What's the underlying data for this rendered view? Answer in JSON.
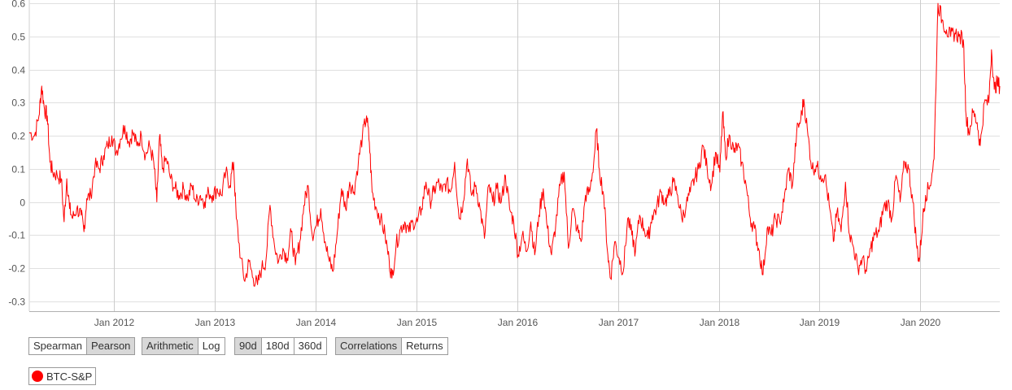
{
  "chart_data": {
    "type": "line",
    "x_ticks": [
      "Jan 2012",
      "Jan 2013",
      "Jan 2014",
      "Jan 2015",
      "Jan 2016",
      "Jan 2017",
      "Jan 2018",
      "Jan 2019",
      "Jan 2020"
    ],
    "y_ticks": [
      "0.6",
      "0.5",
      "0.4",
      "0.3",
      "0.2",
      "0.1",
      "0",
      "-0.1",
      "-0.2",
      "-0.3"
    ],
    "xlim": [
      "2011-03-01",
      "2020-10-15"
    ],
    "ylim": [
      -0.33,
      0.61
    ],
    "grid": true,
    "series": [
      {
        "name": "BTC-S&P",
        "color": "#ff0000",
        "points": [
          [
            "2011-03-01",
            0.21
          ],
          [
            "2011-03-20",
            0.2
          ],
          [
            "2011-04-05",
            0.26
          ],
          [
            "2011-04-15",
            0.35
          ],
          [
            "2011-04-25",
            0.28
          ],
          [
            "2011-05-05",
            0.26
          ],
          [
            "2011-05-15",
            0.12
          ],
          [
            "2011-05-25",
            0.09
          ],
          [
            "2011-06-10",
            0.08
          ],
          [
            "2011-06-25",
            0.07
          ],
          [
            "2011-07-05",
            -0.06
          ],
          [
            "2011-07-15",
            0.07
          ],
          [
            "2011-07-25",
            -0.02
          ],
          [
            "2011-08-05",
            -0.05
          ],
          [
            "2011-08-20",
            -0.02
          ],
          [
            "2011-09-05",
            -0.04
          ],
          [
            "2011-09-15",
            -0.09
          ],
          [
            "2011-09-25",
            0.01
          ],
          [
            "2011-10-10",
            0.02
          ],
          [
            "2011-10-25",
            0.11
          ],
          [
            "2011-11-10",
            0.1
          ],
          [
            "2011-11-25",
            0.14
          ],
          [
            "2011-12-10",
            0.17
          ],
          [
            "2011-12-25",
            0.2
          ],
          [
            "2012-01-10",
            0.15
          ],
          [
            "2012-01-25",
            0.19
          ],
          [
            "2012-02-10",
            0.23
          ],
          [
            "2012-02-25",
            0.18
          ],
          [
            "2012-03-10",
            0.21
          ],
          [
            "2012-03-25",
            0.17
          ],
          [
            "2012-04-10",
            0.2
          ],
          [
            "2012-04-25",
            0.14
          ],
          [
            "2012-05-10",
            0.17
          ],
          [
            "2012-05-25",
            0.12
          ],
          [
            "2012-06-05",
            0.0
          ],
          [
            "2012-06-15",
            0.2
          ],
          [
            "2012-06-25",
            0.1
          ],
          [
            "2012-07-10",
            0.13
          ],
          [
            "2012-07-25",
            0.07
          ],
          [
            "2012-08-10",
            0.04
          ],
          [
            "2012-08-25",
            0.02
          ],
          [
            "2012-09-10",
            0.04
          ],
          [
            "2012-09-25",
            0.01
          ],
          [
            "2012-10-10",
            0.05
          ],
          [
            "2012-10-25",
            0.0
          ],
          [
            "2012-11-10",
            0.02
          ],
          [
            "2012-11-25",
            0.0
          ],
          [
            "2012-12-10",
            0.03
          ],
          [
            "2012-12-25",
            0.02
          ],
          [
            "2013-01-10",
            0.04
          ],
          [
            "2013-01-25",
            0.02
          ],
          [
            "2013-02-10",
            0.09
          ],
          [
            "2013-02-25",
            0.05
          ],
          [
            "2013-03-10",
            0.12
          ],
          [
            "2013-03-20",
            -0.05
          ],
          [
            "2013-04-05",
            -0.17
          ],
          [
            "2013-04-20",
            -0.24
          ],
          [
            "2013-05-05",
            -0.18
          ],
          [
            "2013-05-20",
            -0.23
          ],
          [
            "2013-06-05",
            -0.25
          ],
          [
            "2013-06-20",
            -0.2
          ],
          [
            "2013-07-05",
            -0.18
          ],
          [
            "2013-07-20",
            -0.01
          ],
          [
            "2013-08-05",
            -0.13
          ],
          [
            "2013-08-20",
            -0.18
          ],
          [
            "2013-09-05",
            -0.14
          ],
          [
            "2013-09-20",
            -0.17
          ],
          [
            "2013-10-05",
            -0.09
          ],
          [
            "2013-10-20",
            -0.19
          ],
          [
            "2013-11-05",
            -0.12
          ],
          [
            "2013-11-20",
            -0.01
          ],
          [
            "2013-12-05",
            0.05
          ],
          [
            "2013-12-20",
            -0.1
          ],
          [
            "2014-01-05",
            -0.07
          ],
          [
            "2014-01-20",
            -0.02
          ],
          [
            "2014-02-05",
            -0.12
          ],
          [
            "2014-02-20",
            -0.18
          ],
          [
            "2014-03-05",
            -0.21
          ],
          [
            "2014-03-20",
            -0.1
          ],
          [
            "2014-04-05",
            0.04
          ],
          [
            "2014-04-20",
            -0.02
          ],
          [
            "2014-05-05",
            0.06
          ],
          [
            "2014-05-20",
            0.03
          ],
          [
            "2014-06-05",
            0.12
          ],
          [
            "2014-06-20",
            0.2
          ],
          [
            "2014-07-05",
            0.26
          ],
          [
            "2014-07-15",
            0.18
          ],
          [
            "2014-07-25",
            0.03
          ],
          [
            "2014-08-10",
            -0.02
          ],
          [
            "2014-08-25",
            -0.05
          ],
          [
            "2014-09-10",
            -0.1
          ],
          [
            "2014-09-25",
            -0.18
          ],
          [
            "2014-10-05",
            -0.23
          ],
          [
            "2014-10-20",
            -0.13
          ],
          [
            "2014-11-05",
            -0.08
          ],
          [
            "2014-11-20",
            -0.06
          ],
          [
            "2014-12-05",
            -0.09
          ],
          [
            "2014-12-20",
            -0.06
          ],
          [
            "2015-01-05",
            -0.06
          ],
          [
            "2015-01-20",
            -0.02
          ],
          [
            "2015-02-05",
            0.06
          ],
          [
            "2015-02-20",
            0.0
          ],
          [
            "2015-03-05",
            0.03
          ],
          [
            "2015-03-20",
            0.06
          ],
          [
            "2015-04-05",
            0.03
          ],
          [
            "2015-04-20",
            0.06
          ],
          [
            "2015-05-05",
            0.03
          ],
          [
            "2015-05-20",
            0.12
          ],
          [
            "2015-06-05",
            -0.05
          ],
          [
            "2015-06-20",
            0.0
          ],
          [
            "2015-07-05",
            0.13
          ],
          [
            "2015-07-20",
            0.02
          ],
          [
            "2015-08-05",
            0.05
          ],
          [
            "2015-08-20",
            -0.02
          ],
          [
            "2015-09-05",
            -0.11
          ],
          [
            "2015-09-20",
            0.05
          ],
          [
            "2015-10-05",
            0.0
          ],
          [
            "2015-10-20",
            0.04
          ],
          [
            "2015-11-05",
            0.0
          ],
          [
            "2015-11-20",
            0.08
          ],
          [
            "2015-12-05",
            -0.02
          ],
          [
            "2015-12-20",
            -0.06
          ],
          [
            "2016-01-05",
            -0.16
          ],
          [
            "2016-01-20",
            -0.1
          ],
          [
            "2016-02-05",
            -0.15
          ],
          [
            "2016-02-20",
            -0.06
          ],
          [
            "2016-03-05",
            -0.16
          ],
          [
            "2016-03-20",
            -0.04
          ],
          [
            "2016-04-05",
            0.04
          ],
          [
            "2016-04-20",
            -0.08
          ],
          [
            "2016-05-05",
            -0.16
          ],
          [
            "2016-05-20",
            -0.07
          ],
          [
            "2016-06-05",
            0.05
          ],
          [
            "2016-06-20",
            0.09
          ],
          [
            "2016-07-05",
            -0.14
          ],
          [
            "2016-07-20",
            -0.02
          ],
          [
            "2016-08-05",
            -0.08
          ],
          [
            "2016-08-20",
            -0.12
          ],
          [
            "2016-09-05",
            0.02
          ],
          [
            "2016-09-20",
            0.03
          ],
          [
            "2016-10-05",
            0.12
          ],
          [
            "2016-10-15",
            0.22
          ],
          [
            "2016-10-25",
            0.1
          ],
          [
            "2016-11-10",
            0.02
          ],
          [
            "2016-11-25",
            -0.16
          ],
          [
            "2016-12-05",
            -0.23
          ],
          [
            "2016-12-20",
            -0.12
          ],
          [
            "2017-01-05",
            -0.17
          ],
          [
            "2017-01-20",
            -0.21
          ],
          [
            "2017-02-05",
            -0.05
          ],
          [
            "2017-02-20",
            -0.1
          ],
          [
            "2017-03-05",
            -0.15
          ],
          [
            "2017-03-20",
            -0.04
          ],
          [
            "2017-04-05",
            -0.08
          ],
          [
            "2017-04-20",
            -0.11
          ],
          [
            "2017-05-05",
            -0.04
          ],
          [
            "2017-05-20",
            -0.02
          ],
          [
            "2017-06-05",
            0.03
          ],
          [
            "2017-06-20",
            0.0
          ],
          [
            "2017-07-05",
            0.02
          ],
          [
            "2017-07-20",
            0.06
          ],
          [
            "2017-08-05",
            0.02
          ],
          [
            "2017-08-20",
            -0.05
          ],
          [
            "2017-09-05",
            -0.01
          ],
          [
            "2017-09-20",
            0.03
          ],
          [
            "2017-10-05",
            0.07
          ],
          [
            "2017-10-20",
            0.1
          ],
          [
            "2017-11-05",
            0.17
          ],
          [
            "2017-11-20",
            0.1
          ],
          [
            "2017-12-05",
            0.05
          ],
          [
            "2017-12-20",
            0.15
          ],
          [
            "2018-01-05",
            0.09
          ],
          [
            "2018-01-15",
            0.27
          ],
          [
            "2018-01-25",
            0.14
          ],
          [
            "2018-02-10",
            0.2
          ],
          [
            "2018-02-25",
            0.15
          ],
          [
            "2018-03-10",
            0.17
          ],
          [
            "2018-03-25",
            0.12
          ],
          [
            "2018-04-10",
            0.05
          ],
          [
            "2018-04-25",
            -0.05
          ],
          [
            "2018-05-10",
            -0.08
          ],
          [
            "2018-05-25",
            -0.14
          ],
          [
            "2018-06-10",
            -0.22
          ],
          [
            "2018-06-25",
            -0.08
          ],
          [
            "2018-07-10",
            -0.1
          ],
          [
            "2018-07-25",
            -0.05
          ],
          [
            "2018-08-10",
            -0.06
          ],
          [
            "2018-08-25",
            0.0
          ],
          [
            "2018-09-10",
            0.1
          ],
          [
            "2018-09-25",
            0.05
          ],
          [
            "2018-10-10",
            0.21
          ],
          [
            "2018-10-25",
            0.25
          ],
          [
            "2018-11-05",
            0.31
          ],
          [
            "2018-11-20",
            0.2
          ],
          [
            "2018-12-05",
            0.1
          ],
          [
            "2018-12-20",
            0.11
          ],
          [
            "2019-01-05",
            0.08
          ],
          [
            "2019-01-20",
            0.08
          ],
          [
            "2019-02-05",
            -0.01
          ],
          [
            "2019-02-20",
            -0.12
          ],
          [
            "2019-03-05",
            -0.03
          ],
          [
            "2019-03-20",
            -0.09
          ],
          [
            "2019-04-05",
            0.06
          ],
          [
            "2019-04-20",
            -0.1
          ],
          [
            "2019-05-05",
            -0.14
          ],
          [
            "2019-05-20",
            -0.2
          ],
          [
            "2019-06-05",
            -0.17
          ],
          [
            "2019-06-20",
            -0.21
          ],
          [
            "2019-07-05",
            -0.14
          ],
          [
            "2019-07-20",
            -0.1
          ],
          [
            "2019-08-05",
            -0.09
          ],
          [
            "2019-08-20",
            -0.02
          ],
          [
            "2019-09-05",
            0.0
          ],
          [
            "2019-09-20",
            -0.05
          ],
          [
            "2019-10-05",
            0.08
          ],
          [
            "2019-10-20",
            0.0
          ],
          [
            "2019-11-05",
            0.12
          ],
          [
            "2019-11-20",
            0.1
          ],
          [
            "2019-12-05",
            0.0
          ],
          [
            "2019-12-20",
            -0.14
          ],
          [
            "2019-12-28",
            -0.18
          ],
          [
            "2020-01-10",
            -0.05
          ],
          [
            "2020-01-20",
            0.02
          ],
          [
            "2020-02-05",
            0.05
          ],
          [
            "2020-02-20",
            0.13
          ],
          [
            "2020-03-05",
            0.6
          ],
          [
            "2020-03-20",
            0.55
          ],
          [
            "2020-04-05",
            0.52
          ],
          [
            "2020-04-20",
            0.5
          ],
          [
            "2020-05-05",
            0.51
          ],
          [
            "2020-05-20",
            0.5
          ],
          [
            "2020-06-05",
            0.49
          ],
          [
            "2020-06-15",
            0.26
          ],
          [
            "2020-06-25",
            0.21
          ],
          [
            "2020-07-10",
            0.27
          ],
          [
            "2020-07-25",
            0.24
          ],
          [
            "2020-08-05",
            0.17
          ],
          [
            "2020-08-20",
            0.3
          ],
          [
            "2020-09-05",
            0.3
          ],
          [
            "2020-09-15",
            0.46
          ],
          [
            "2020-09-25",
            0.34
          ],
          [
            "2020-10-05",
            0.36
          ],
          [
            "2020-10-15",
            0.35
          ]
        ]
      }
    ]
  },
  "controls": {
    "method": {
      "spearman": "Spearman",
      "pearson": "Pearson"
    },
    "scale": {
      "arithmetic": "Arithmetic",
      "log": "Log"
    },
    "window": {
      "d90": "90d",
      "d180": "180d",
      "d360": "360d"
    },
    "view": {
      "correlations": "Correlations",
      "returns": "Returns"
    }
  },
  "legend": {
    "label": "BTC-S&P",
    "color": "#ff0000"
  }
}
